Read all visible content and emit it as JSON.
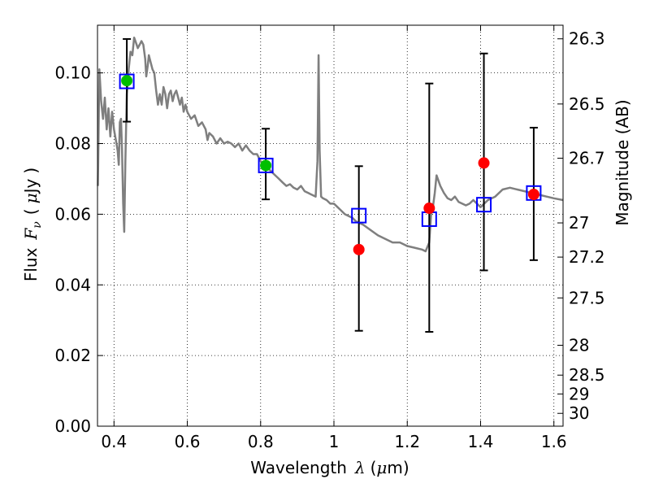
{
  "chart_data": {
    "type": "scatter",
    "title": "",
    "xlabel": "Wavelength",
    "xlabel_symbol": "λ",
    "xlabel_unit_open": "(",
    "xlabel_unit_mu": "μ",
    "xlabel_unit_rest": "m)",
    "ylabel": "Flux",
    "ylabel_symbol": "F",
    "ylabel_subscript": "ν",
    "ylabel_unit_open": "(",
    "ylabel_unit_mu": "μ",
    "ylabel_unit_rest": "Jy",
    "ylabel_unit_close": ")",
    "y2label": "Magnitude (AB)",
    "xlim": [
      0.355,
      1.625
    ],
    "ylim": [
      0.0,
      0.1135
    ],
    "grid": true,
    "x_ticks": [
      {
        "value": 0.4,
        "label": "0.4"
      },
      {
        "value": 0.6,
        "label": "0.6"
      },
      {
        "value": 0.8,
        "label": "0.8"
      },
      {
        "value": 1.0,
        "label": "1"
      },
      {
        "value": 1.2,
        "label": "1.2"
      },
      {
        "value": 1.4,
        "label": "1.4"
      },
      {
        "value": 1.6,
        "label": "1.6"
      }
    ],
    "y_ticks": [
      {
        "value": 0.0,
        "label": "0.00"
      },
      {
        "value": 0.02,
        "label": "0.02"
      },
      {
        "value": 0.04,
        "label": "0.04"
      },
      {
        "value": 0.06,
        "label": "0.06"
      },
      {
        "value": 0.08,
        "label": "0.08"
      },
      {
        "value": 0.1,
        "label": "0.10"
      }
    ],
    "mag_ticks": [
      {
        "mag": 26.3,
        "label": "26.3"
      },
      {
        "mag": 26.5,
        "label": "26.5"
      },
      {
        "mag": 26.7,
        "label": "26.7"
      },
      {
        "mag": 27,
        "label": "27"
      },
      {
        "mag": 27.2,
        "label": "27.2"
      },
      {
        "mag": 27.5,
        "label": "27.5"
      },
      {
        "mag": 28,
        "label": "28"
      },
      {
        "mag": 28.5,
        "label": "28.5"
      },
      {
        "mag": 29,
        "label": "29"
      },
      {
        "mag": 30,
        "label": "30"
      }
    ],
    "observed": [
      {
        "x": 0.435,
        "y": 0.0978,
        "yerr_low": 0.0116,
        "yerr_high": 0.0118,
        "detection": true
      },
      {
        "x": 0.814,
        "y": 0.0738,
        "yerr_low": 0.0096,
        "yerr_high": 0.0104,
        "detection": true
      },
      {
        "x": 1.068,
        "y": 0.05,
        "yerr_low": 0.023,
        "yerr_high": 0.0236,
        "detection": false
      },
      {
        "x": 1.26,
        "y": 0.0617,
        "yerr_low": 0.035,
        "yerr_high": 0.0353,
        "detection": false
      },
      {
        "x": 1.409,
        "y": 0.0745,
        "yerr_low": 0.0304,
        "yerr_high": 0.031,
        "detection": false
      },
      {
        "x": 1.545,
        "y": 0.0656,
        "yerr_low": 0.0186,
        "yerr_high": 0.0189,
        "detection": false
      }
    ],
    "model_photometry": [
      {
        "x": 0.435,
        "y": 0.0976
      },
      {
        "x": 0.814,
        "y": 0.0738
      },
      {
        "x": 1.068,
        "y": 0.0596
      },
      {
        "x": 1.26,
        "y": 0.0586
      },
      {
        "x": 1.409,
        "y": 0.0627
      },
      {
        "x": 1.545,
        "y": 0.066
      }
    ],
    "model_spectrum": [
      [
        0.356,
        0.068
      ],
      [
        0.36,
        0.101
      ],
      [
        0.365,
        0.092
      ],
      [
        0.37,
        0.087
      ],
      [
        0.375,
        0.093
      ],
      [
        0.38,
        0.084
      ],
      [
        0.385,
        0.09
      ],
      [
        0.39,
        0.082
      ],
      [
        0.395,
        0.089
      ],
      [
        0.4,
        0.084
      ],
      [
        0.405,
        0.081
      ],
      [
        0.41,
        0.078
      ],
      [
        0.413,
        0.074
      ],
      [
        0.416,
        0.086
      ],
      [
        0.419,
        0.087
      ],
      [
        0.422,
        0.078
      ],
      [
        0.425,
        0.063
      ],
      [
        0.428,
        0.055
      ],
      [
        0.431,
        0.075
      ],
      [
        0.435,
        0.094
      ],
      [
        0.44,
        0.101
      ],
      [
        0.445,
        0.106
      ],
      [
        0.45,
        0.105
      ],
      [
        0.455,
        0.11
      ],
      [
        0.46,
        0.1085
      ],
      [
        0.465,
        0.107
      ],
      [
        0.47,
        0.108
      ],
      [
        0.475,
        0.109
      ],
      [
        0.48,
        0.108
      ],
      [
        0.485,
        0.104
      ],
      [
        0.488,
        0.099
      ],
      [
        0.492,
        0.102
      ],
      [
        0.495,
        0.105
      ],
      [
        0.5,
        0.103
      ],
      [
        0.505,
        0.101
      ],
      [
        0.51,
        0.1
      ],
      [
        0.515,
        0.095
      ],
      [
        0.52,
        0.091
      ],
      [
        0.525,
        0.094
      ],
      [
        0.53,
        0.091
      ],
      [
        0.535,
        0.096
      ],
      [
        0.54,
        0.094
      ],
      [
        0.545,
        0.09
      ],
      [
        0.55,
        0.094
      ],
      [
        0.555,
        0.095
      ],
      [
        0.56,
        0.092
      ],
      [
        0.565,
        0.094
      ],
      [
        0.57,
        0.095
      ],
      [
        0.575,
        0.093
      ],
      [
        0.58,
        0.091
      ],
      [
        0.585,
        0.093
      ],
      [
        0.59,
        0.089
      ],
      [
        0.595,
        0.091
      ],
      [
        0.6,
        0.089
      ],
      [
        0.61,
        0.087
      ],
      [
        0.62,
        0.088
      ],
      [
        0.63,
        0.085
      ],
      [
        0.64,
        0.086
      ],
      [
        0.65,
        0.084
      ],
      [
        0.655,
        0.081
      ],
      [
        0.66,
        0.083
      ],
      [
        0.67,
        0.082
      ],
      [
        0.68,
        0.08
      ],
      [
        0.69,
        0.0815
      ],
      [
        0.7,
        0.08
      ],
      [
        0.71,
        0.0805
      ],
      [
        0.72,
        0.08
      ],
      [
        0.73,
        0.079
      ],
      [
        0.74,
        0.08
      ],
      [
        0.75,
        0.078
      ],
      [
        0.76,
        0.0795
      ],
      [
        0.77,
        0.078
      ],
      [
        0.78,
        0.077
      ],
      [
        0.79,
        0.077
      ],
      [
        0.8,
        0.075
      ],
      [
        0.81,
        0.074
      ],
      [
        0.82,
        0.073
      ],
      [
        0.83,
        0.072
      ],
      [
        0.84,
        0.071
      ],
      [
        0.85,
        0.07
      ],
      [
        0.86,
        0.069
      ],
      [
        0.87,
        0.068
      ],
      [
        0.88,
        0.0685
      ],
      [
        0.89,
        0.0675
      ],
      [
        0.9,
        0.067
      ],
      [
        0.91,
        0.068
      ],
      [
        0.92,
        0.0665
      ],
      [
        0.93,
        0.066
      ],
      [
        0.94,
        0.0655
      ],
      [
        0.95,
        0.065
      ],
      [
        0.955,
        0.075
      ],
      [
        0.958,
        0.105
      ],
      [
        0.961,
        0.078
      ],
      [
        0.965,
        0.065
      ],
      [
        0.97,
        0.0645
      ],
      [
        0.98,
        0.064
      ],
      [
        0.99,
        0.063
      ],
      [
        1.0,
        0.063
      ],
      [
        1.01,
        0.062
      ],
      [
        1.02,
        0.061
      ],
      [
        1.03,
        0.06
      ],
      [
        1.04,
        0.0595
      ],
      [
        1.05,
        0.059
      ],
      [
        1.06,
        0.058
      ],
      [
        1.07,
        0.0575
      ],
      [
        1.08,
        0.057
      ],
      [
        1.1,
        0.0555
      ],
      [
        1.12,
        0.054
      ],
      [
        1.14,
        0.053
      ],
      [
        1.16,
        0.052
      ],
      [
        1.18,
        0.052
      ],
      [
        1.2,
        0.051
      ],
      [
        1.22,
        0.0505
      ],
      [
        1.24,
        0.05
      ],
      [
        1.25,
        0.0495
      ],
      [
        1.26,
        0.052
      ],
      [
        1.265,
        0.06
      ],
      [
        1.27,
        0.062
      ],
      [
        1.275,
        0.066
      ],
      [
        1.28,
        0.071
      ],
      [
        1.29,
        0.068
      ],
      [
        1.3,
        0.066
      ],
      [
        1.31,
        0.0645
      ],
      [
        1.32,
        0.064
      ],
      [
        1.33,
        0.065
      ],
      [
        1.34,
        0.0635
      ],
      [
        1.35,
        0.063
      ],
      [
        1.36,
        0.0625
      ],
      [
        1.37,
        0.063
      ],
      [
        1.38,
        0.064
      ],
      [
        1.39,
        0.063
      ],
      [
        1.4,
        0.062
      ],
      [
        1.42,
        0.064
      ],
      [
        1.44,
        0.065
      ],
      [
        1.46,
        0.067
      ],
      [
        1.48,
        0.0675
      ],
      [
        1.5,
        0.067
      ],
      [
        1.52,
        0.0665
      ],
      [
        1.54,
        0.066
      ],
      [
        1.56,
        0.0655
      ],
      [
        1.58,
        0.065
      ],
      [
        1.6,
        0.0645
      ],
      [
        1.625,
        0.064
      ]
    ],
    "colors": {
      "spectrum": "#7f7f7f",
      "detection": "#00bf00",
      "nondetection": "#ff0000",
      "model_box": "#0000ff",
      "errorbar": "#000000",
      "grid": "#000000"
    }
  }
}
